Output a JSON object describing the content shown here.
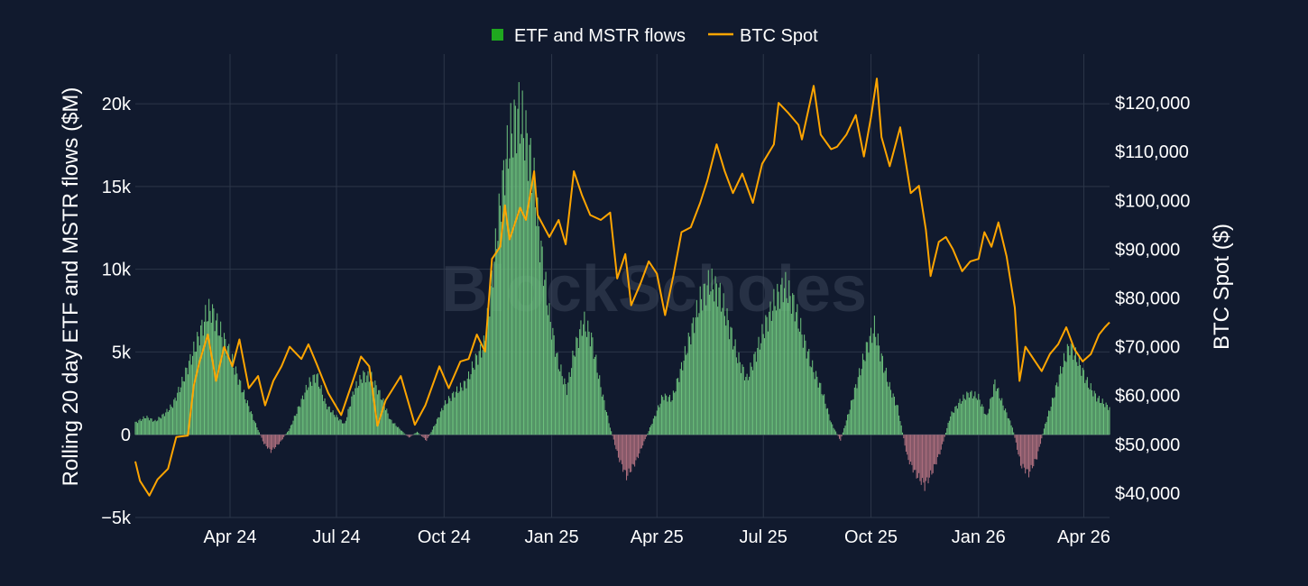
{
  "colors": {
    "background": "#111a2e",
    "grid": "#2c3649",
    "bar_positive": "#6cc17c",
    "bar_negative": "#b0707f",
    "btc_line": "#ffa500",
    "legend_swatch": "#1fa81f",
    "text": "#ffffff"
  },
  "watermark": "BlockScholes",
  "chart_data": {
    "type": "bar+line",
    "title": "",
    "legend": {
      "placement": "top-center",
      "entries": [
        "ETF and MSTR flows",
        "BTC Spot"
      ]
    },
    "grid": true,
    "x": {
      "range": [
        "2024-01-11",
        "2026-04-23"
      ],
      "ticks": [
        {
          "date": "2024-04-01",
          "label": "Apr 24"
        },
        {
          "date": "2024-07-01",
          "label": "Jul 24"
        },
        {
          "date": "2024-10-01",
          "label": "Oct 24"
        },
        {
          "date": "2025-01-01",
          "label": "Jan 25"
        },
        {
          "date": "2025-04-01",
          "label": "Apr 25"
        },
        {
          "date": "2025-07-01",
          "label": "Jul 25"
        },
        {
          "date": "2025-10-01",
          "label": "Oct 25"
        },
        {
          "date": "2026-01-01",
          "label": "Jan 26"
        },
        {
          "date": "2026-04-01",
          "label": "Apr 26"
        }
      ]
    },
    "y_left": {
      "label": "Rolling 20 day ETF and MSTR flows ($M)",
      "range": [
        -5000,
        23000
      ],
      "ticks": [
        {
          "value": -5000,
          "label": "−5k"
        },
        {
          "value": 0,
          "label": "0"
        },
        {
          "value": 5000,
          "label": "5k"
        },
        {
          "value": 10000,
          "label": "10k"
        },
        {
          "value": 15000,
          "label": "15k"
        },
        {
          "value": 20000,
          "label": "20k"
        }
      ]
    },
    "y_right": {
      "label": "BTC Spot ($)",
      "range": [
        35000,
        130000
      ],
      "ticks": [
        {
          "value": 40000,
          "label": "$40,000"
        },
        {
          "value": 50000,
          "label": "$50,000"
        },
        {
          "value": 60000,
          "label": "$60,000"
        },
        {
          "value": 70000,
          "label": "$70,000"
        },
        {
          "value": 80000,
          "label": "$80,000"
        },
        {
          "value": 90000,
          "label": "$90,000"
        },
        {
          "value": 100000,
          "label": "$100,000"
        },
        {
          "value": 110000,
          "label": "$110,000"
        },
        {
          "value": 120000,
          "label": "$120,000"
        }
      ]
    },
    "series": [
      {
        "name": "ETF and MSTR flows",
        "type": "bar",
        "axis": "left",
        "points": [
          [
            "2024-01-11",
            800
          ],
          [
            "2024-01-20",
            1200
          ],
          [
            "2024-01-28",
            900
          ],
          [
            "2024-02-05",
            1400
          ],
          [
            "2024-02-12",
            2000
          ],
          [
            "2024-02-20",
            3500
          ],
          [
            "2024-02-28",
            5200
          ],
          [
            "2024-03-05",
            6500
          ],
          [
            "2024-03-12",
            8100
          ],
          [
            "2024-03-16",
            8400
          ],
          [
            "2024-03-22",
            7200
          ],
          [
            "2024-03-30",
            5800
          ],
          [
            "2024-04-06",
            4200
          ],
          [
            "2024-04-14",
            2500
          ],
          [
            "2024-04-22",
            900
          ],
          [
            "2024-04-30",
            -600
          ],
          [
            "2024-05-06",
            -1100
          ],
          [
            "2024-05-14",
            -500
          ],
          [
            "2024-05-22",
            400
          ],
          [
            "2024-05-30",
            1900
          ],
          [
            "2024-06-07",
            3400
          ],
          [
            "2024-06-14",
            4000
          ],
          [
            "2024-06-22",
            2000
          ],
          [
            "2024-06-30",
            1300
          ],
          [
            "2024-07-08",
            700
          ],
          [
            "2024-07-16",
            3000
          ],
          [
            "2024-07-24",
            4000
          ],
          [
            "2024-07-31",
            3800
          ],
          [
            "2024-08-08",
            2600
          ],
          [
            "2024-08-16",
            1000
          ],
          [
            "2024-08-24",
            400
          ],
          [
            "2024-09-01",
            -200
          ],
          [
            "2024-09-08",
            200
          ],
          [
            "2024-09-16",
            -400
          ],
          [
            "2024-09-24",
            800
          ],
          [
            "2024-10-01",
            2000
          ],
          [
            "2024-10-10",
            2800
          ],
          [
            "2024-10-20",
            3500
          ],
          [
            "2024-10-28",
            5000
          ],
          [
            "2024-11-04",
            6000
          ],
          [
            "2024-11-10",
            9500
          ],
          [
            "2024-11-16",
            14000
          ],
          [
            "2024-11-22",
            18000
          ],
          [
            "2024-11-28",
            20500
          ],
          [
            "2024-12-04",
            21600
          ],
          [
            "2024-12-10",
            20000
          ],
          [
            "2024-12-16",
            17500
          ],
          [
            "2024-12-22",
            13000
          ],
          [
            "2024-12-30",
            8000
          ],
          [
            "2025-01-06",
            5000
          ],
          [
            "2025-01-14",
            3000
          ],
          [
            "2025-01-20",
            5500
          ],
          [
            "2025-01-28",
            7600
          ],
          [
            "2025-02-04",
            6500
          ],
          [
            "2025-02-12",
            3200
          ],
          [
            "2025-02-20",
            500
          ],
          [
            "2025-02-27",
            -1500
          ],
          [
            "2025-03-06",
            -2800
          ],
          [
            "2025-03-14",
            -1800
          ],
          [
            "2025-03-22",
            -300
          ],
          [
            "2025-03-30",
            1200
          ],
          [
            "2025-04-06",
            2600
          ],
          [
            "2025-04-14",
            2400
          ],
          [
            "2025-04-22",
            4500
          ],
          [
            "2025-04-30",
            6800
          ],
          [
            "2025-05-08",
            9000
          ],
          [
            "2025-05-16",
            10200
          ],
          [
            "2025-05-24",
            9600
          ],
          [
            "2025-06-01",
            7500
          ],
          [
            "2025-06-09",
            5200
          ],
          [
            "2025-06-17",
            3700
          ],
          [
            "2025-06-25",
            5500
          ],
          [
            "2025-07-03",
            7400
          ],
          [
            "2025-07-11",
            9000
          ],
          [
            "2025-07-19",
            10000
          ],
          [
            "2025-07-27",
            8800
          ],
          [
            "2025-08-04",
            6500
          ],
          [
            "2025-08-12",
            4500
          ],
          [
            "2025-08-20",
            3000
          ],
          [
            "2025-08-28",
            800
          ],
          [
            "2025-09-05",
            -400
          ],
          [
            "2025-09-12",
            1500
          ],
          [
            "2025-09-20",
            3800
          ],
          [
            "2025-09-28",
            6000
          ],
          [
            "2025-10-04",
            7200
          ],
          [
            "2025-10-10",
            5200
          ],
          [
            "2025-10-17",
            3200
          ],
          [
            "2025-10-24",
            1800
          ],
          [
            "2025-11-01",
            -1500
          ],
          [
            "2025-11-08",
            -2600
          ],
          [
            "2025-11-16",
            -3400
          ],
          [
            "2025-11-23",
            -2400
          ],
          [
            "2025-11-30",
            -1000
          ],
          [
            "2025-12-08",
            1300
          ],
          [
            "2025-12-16",
            2200
          ],
          [
            "2025-12-24",
            2800
          ],
          [
            "2026-01-01",
            2500
          ],
          [
            "2026-01-08",
            1200
          ],
          [
            "2026-01-15",
            3500
          ],
          [
            "2026-01-22",
            2000
          ],
          [
            "2026-01-30",
            500
          ],
          [
            "2026-02-06",
            -2000
          ],
          [
            "2026-02-13",
            -2600
          ],
          [
            "2026-02-20",
            -1500
          ],
          [
            "2026-02-27",
            700
          ],
          [
            "2026-03-06",
            2500
          ],
          [
            "2026-03-13",
            4500
          ],
          [
            "2026-03-20",
            6000
          ],
          [
            "2026-03-27",
            5000
          ],
          [
            "2026-04-04",
            3500
          ],
          [
            "2026-04-12",
            2500
          ],
          [
            "2026-04-23",
            1800
          ]
        ]
      },
      {
        "name": "BTC Spot",
        "type": "line",
        "axis": "right",
        "points": [
          [
            "2024-01-11",
            46500
          ],
          [
            "2024-01-15",
            42500
          ],
          [
            "2024-01-23",
            39500
          ],
          [
            "2024-01-30",
            42800
          ],
          [
            "2024-02-08",
            45000
          ],
          [
            "2024-02-15",
            51500
          ],
          [
            "2024-02-25",
            51800
          ],
          [
            "2024-03-01",
            62000
          ],
          [
            "2024-03-06",
            67000
          ],
          [
            "2024-03-13",
            72500
          ],
          [
            "2024-03-20",
            63000
          ],
          [
            "2024-03-27",
            70000
          ],
          [
            "2024-04-03",
            66000
          ],
          [
            "2024-04-09",
            71500
          ],
          [
            "2024-04-17",
            61500
          ],
          [
            "2024-04-25",
            64000
          ],
          [
            "2024-05-01",
            58000
          ],
          [
            "2024-05-08",
            63000
          ],
          [
            "2024-05-15",
            66000
          ],
          [
            "2024-05-22",
            70000
          ],
          [
            "2024-06-01",
            67500
          ],
          [
            "2024-06-07",
            70500
          ],
          [
            "2024-06-14",
            66500
          ],
          [
            "2024-06-24",
            60500
          ],
          [
            "2024-07-05",
            56000
          ],
          [
            "2024-07-15",
            63000
          ],
          [
            "2024-07-22",
            68000
          ],
          [
            "2024-07-29",
            66000
          ],
          [
            "2024-08-05",
            53800
          ],
          [
            "2024-08-12",
            59000
          ],
          [
            "2024-08-25",
            64000
          ],
          [
            "2024-09-06",
            54000
          ],
          [
            "2024-09-15",
            58000
          ],
          [
            "2024-09-27",
            66000
          ],
          [
            "2024-10-05",
            61500
          ],
          [
            "2024-10-15",
            67000
          ],
          [
            "2024-10-22",
            67500
          ],
          [
            "2024-10-29",
            72500
          ],
          [
            "2024-11-05",
            69000
          ],
          [
            "2024-11-11",
            88000
          ],
          [
            "2024-11-18",
            90500
          ],
          [
            "2024-11-22",
            99000
          ],
          [
            "2024-11-26",
            92000
          ],
          [
            "2024-12-05",
            98500
          ],
          [
            "2024-12-10",
            96000
          ],
          [
            "2024-12-17",
            106000
          ],
          [
            "2024-12-20",
            97000
          ],
          [
            "2024-12-30",
            92500
          ],
          [
            "2025-01-07",
            96000
          ],
          [
            "2025-01-13",
            91000
          ],
          [
            "2025-01-20",
            106000
          ],
          [
            "2025-01-27",
            101000
          ],
          [
            "2025-02-03",
            97000
          ],
          [
            "2025-02-12",
            96000
          ],
          [
            "2025-02-20",
            97500
          ],
          [
            "2025-02-26",
            84000
          ],
          [
            "2025-03-05",
            89000
          ],
          [
            "2025-03-10",
            78500
          ],
          [
            "2025-03-18",
            83000
          ],
          [
            "2025-03-25",
            87500
          ],
          [
            "2025-04-01",
            85000
          ],
          [
            "2025-04-08",
            76500
          ],
          [
            "2025-04-15",
            84500
          ],
          [
            "2025-04-22",
            93500
          ],
          [
            "2025-04-30",
            94500
          ],
          [
            "2025-05-08",
            99500
          ],
          [
            "2025-05-14",
            104000
          ],
          [
            "2025-05-22",
            111500
          ],
          [
            "2025-05-29",
            106000
          ],
          [
            "2025-06-05",
            101500
          ],
          [
            "2025-06-13",
            105500
          ],
          [
            "2025-06-22",
            99500
          ],
          [
            "2025-06-30",
            107500
          ],
          [
            "2025-07-10",
            111500
          ],
          [
            "2025-07-14",
            120000
          ],
          [
            "2025-07-22",
            118000
          ],
          [
            "2025-07-31",
            115500
          ],
          [
            "2025-08-03",
            112500
          ],
          [
            "2025-08-13",
            123500
          ],
          [
            "2025-08-19",
            113500
          ],
          [
            "2025-08-28",
            110500
          ],
          [
            "2025-09-02",
            111000
          ],
          [
            "2025-09-10",
            113500
          ],
          [
            "2025-09-18",
            117500
          ],
          [
            "2025-09-25",
            109000
          ],
          [
            "2025-10-01",
            117000
          ],
          [
            "2025-10-06",
            125000
          ],
          [
            "2025-10-10",
            113000
          ],
          [
            "2025-10-17",
            107000
          ],
          [
            "2025-10-26",
            115000
          ],
          [
            "2025-11-04",
            101500
          ],
          [
            "2025-11-11",
            103000
          ],
          [
            "2025-11-17",
            94000
          ],
          [
            "2025-11-21",
            84500
          ],
          [
            "2025-11-28",
            91500
          ],
          [
            "2025-12-04",
            92500
          ],
          [
            "2025-12-10",
            90000
          ],
          [
            "2025-12-18",
            85500
          ],
          [
            "2025-12-25",
            87500
          ],
          [
            "2026-01-01",
            88000
          ],
          [
            "2026-01-06",
            93500
          ],
          [
            "2026-01-12",
            90500
          ],
          [
            "2026-01-18",
            95500
          ],
          [
            "2026-01-25",
            88500
          ],
          [
            "2026-02-01",
            78000
          ],
          [
            "2026-02-05",
            63000
          ],
          [
            "2026-02-10",
            70000
          ],
          [
            "2026-02-17",
            67500
          ],
          [
            "2026-02-24",
            65000
          ],
          [
            "2026-03-03",
            68500
          ],
          [
            "2026-03-10",
            70500
          ],
          [
            "2026-03-17",
            74000
          ],
          [
            "2026-03-24",
            69500
          ],
          [
            "2026-03-31",
            67000
          ],
          [
            "2026-04-07",
            68500
          ],
          [
            "2026-04-14",
            72500
          ],
          [
            "2026-04-19",
            74000
          ],
          [
            "2026-04-23",
            75000
          ]
        ]
      }
    ]
  }
}
